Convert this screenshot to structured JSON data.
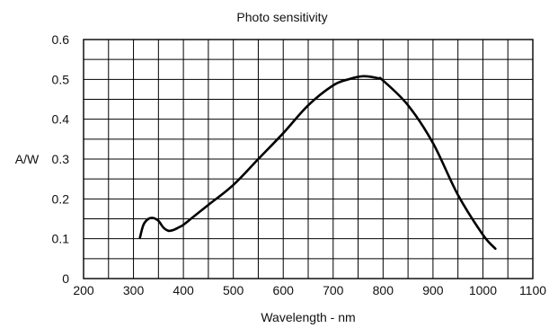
{
  "chart_data": {
    "type": "line",
    "title": "Photo sensitivity",
    "xlabel": "Wavelength - nm",
    "ylabel": "A/W",
    "xlim": [
      200,
      1100
    ],
    "ylim": [
      0,
      0.6
    ],
    "x_ticks": [
      200,
      300,
      400,
      500,
      600,
      700,
      800,
      900,
      1000,
      1100
    ],
    "y_ticks": [
      0,
      0.1,
      0.2,
      0.3,
      0.4,
      0.5,
      0.6
    ],
    "x_tick_labels": [
      "200",
      "300",
      "400",
      "500",
      "600",
      "700",
      "800",
      "900",
      "1000",
      "1100"
    ],
    "y_tick_labels": [
      "0",
      "0.1",
      "0.2",
      "0.3",
      "0.4",
      "0.5",
      "0.6"
    ],
    "grid": true,
    "grid_x_step": 50,
    "grid_y_step": 0.05,
    "legend": "none",
    "series": [
      {
        "color": "#000000",
        "x": [
          313,
          320,
          330,
          340,
          350,
          360,
          370,
          380,
          390,
          400,
          420,
          450,
          500,
          550,
          600,
          650,
          700,
          730,
          760,
          790,
          800,
          850,
          900,
          950,
          1000,
          1025
        ],
        "y": [
          0.103,
          0.135,
          0.15,
          0.152,
          0.145,
          0.128,
          0.12,
          0.122,
          0.128,
          0.135,
          0.155,
          0.185,
          0.235,
          0.3,
          0.365,
          0.435,
          0.485,
          0.5,
          0.508,
          0.503,
          0.497,
          0.435,
          0.34,
          0.21,
          0.11,
          0.075
        ]
      }
    ]
  }
}
